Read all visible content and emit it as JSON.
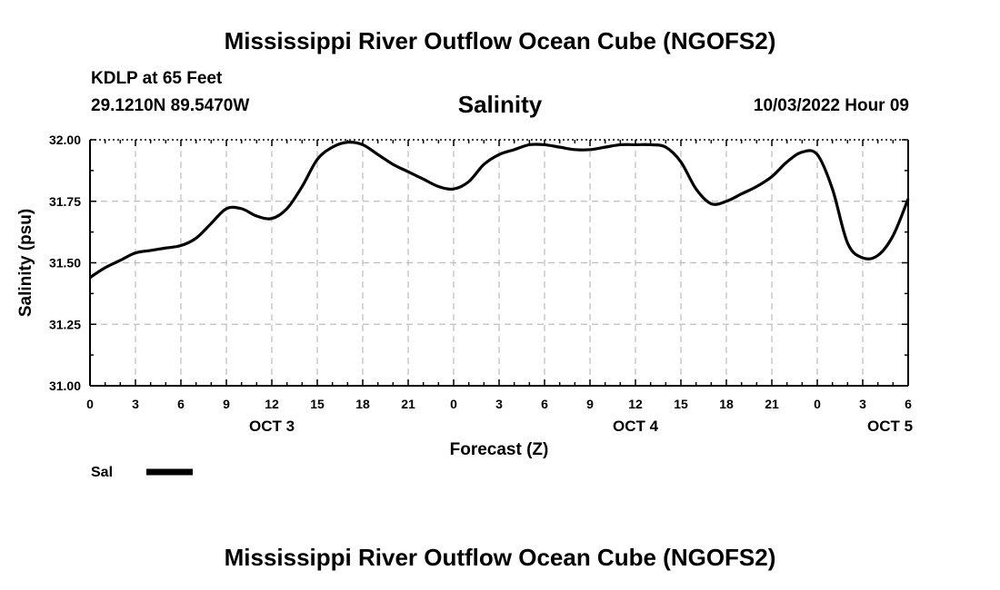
{
  "page_title": "Mississippi River Outflow Ocean Cube (NGOFS2)",
  "footer_title": "Mississippi River Outflow Ocean Cube (NGOFS2)",
  "station": "KDLP at 65 Feet",
  "coordinates": "29.1210N  89.5470W",
  "datetime": "10/03/2022 Hour 09",
  "chart_data": {
    "type": "line",
    "title": "Salinity",
    "xlabel": "Forecast (Z)",
    "ylabel": "Salinity (psu)",
    "x_unit": "forecast hour from 00Z Oct 3",
    "xlim": [
      0,
      54
    ],
    "ylim": [
      31.0,
      32.0
    ],
    "yticks": [
      31.0,
      31.25,
      31.5,
      31.75,
      32.0
    ],
    "ytick_labels": [
      "31.00",
      "31.25",
      "31.50",
      "31.75",
      "32.00"
    ],
    "xtick_labels": [
      "0",
      "3",
      "6",
      "9",
      "12",
      "15",
      "18",
      "21",
      "0",
      "3",
      "6",
      "9",
      "12",
      "15",
      "18",
      "21",
      "0",
      "3",
      "6"
    ],
    "date_labels": [
      {
        "label": "OCT 3",
        "at": 12
      },
      {
        "label": "OCT 4",
        "at": 36
      },
      {
        "label": "OCT 5",
        "at": 52.8
      }
    ],
    "grid": true,
    "legend_position": "bottom-left",
    "series": [
      {
        "name": "Sal",
        "color": "#000000",
        "x": [
          0,
          1,
          2,
          3,
          4,
          5,
          6,
          7,
          8,
          9,
          10,
          11,
          12,
          13,
          14,
          15,
          16,
          17,
          18,
          19,
          20,
          21,
          22,
          23,
          24,
          25,
          26,
          27,
          28,
          29,
          30,
          31,
          32,
          33,
          34,
          35,
          36,
          37,
          38,
          39,
          40,
          41,
          42,
          43,
          44,
          45,
          46,
          47,
          48,
          49,
          50,
          51,
          52,
          53,
          54
        ],
        "y": [
          31.44,
          31.48,
          31.51,
          31.54,
          31.55,
          31.56,
          31.57,
          31.6,
          31.66,
          31.72,
          31.72,
          31.69,
          31.68,
          31.72,
          31.81,
          31.92,
          31.97,
          31.99,
          31.98,
          31.94,
          31.9,
          31.87,
          31.84,
          31.81,
          31.8,
          31.83,
          31.9,
          31.94,
          31.96,
          31.98,
          31.98,
          31.97,
          31.96,
          31.96,
          31.97,
          31.98,
          31.98,
          31.98,
          31.97,
          31.91,
          31.8,
          31.74,
          31.75,
          31.78,
          31.81,
          31.85,
          31.91,
          31.95,
          31.94,
          31.8,
          31.58,
          31.52,
          31.53,
          31.61,
          31.76
        ]
      }
    ]
  }
}
